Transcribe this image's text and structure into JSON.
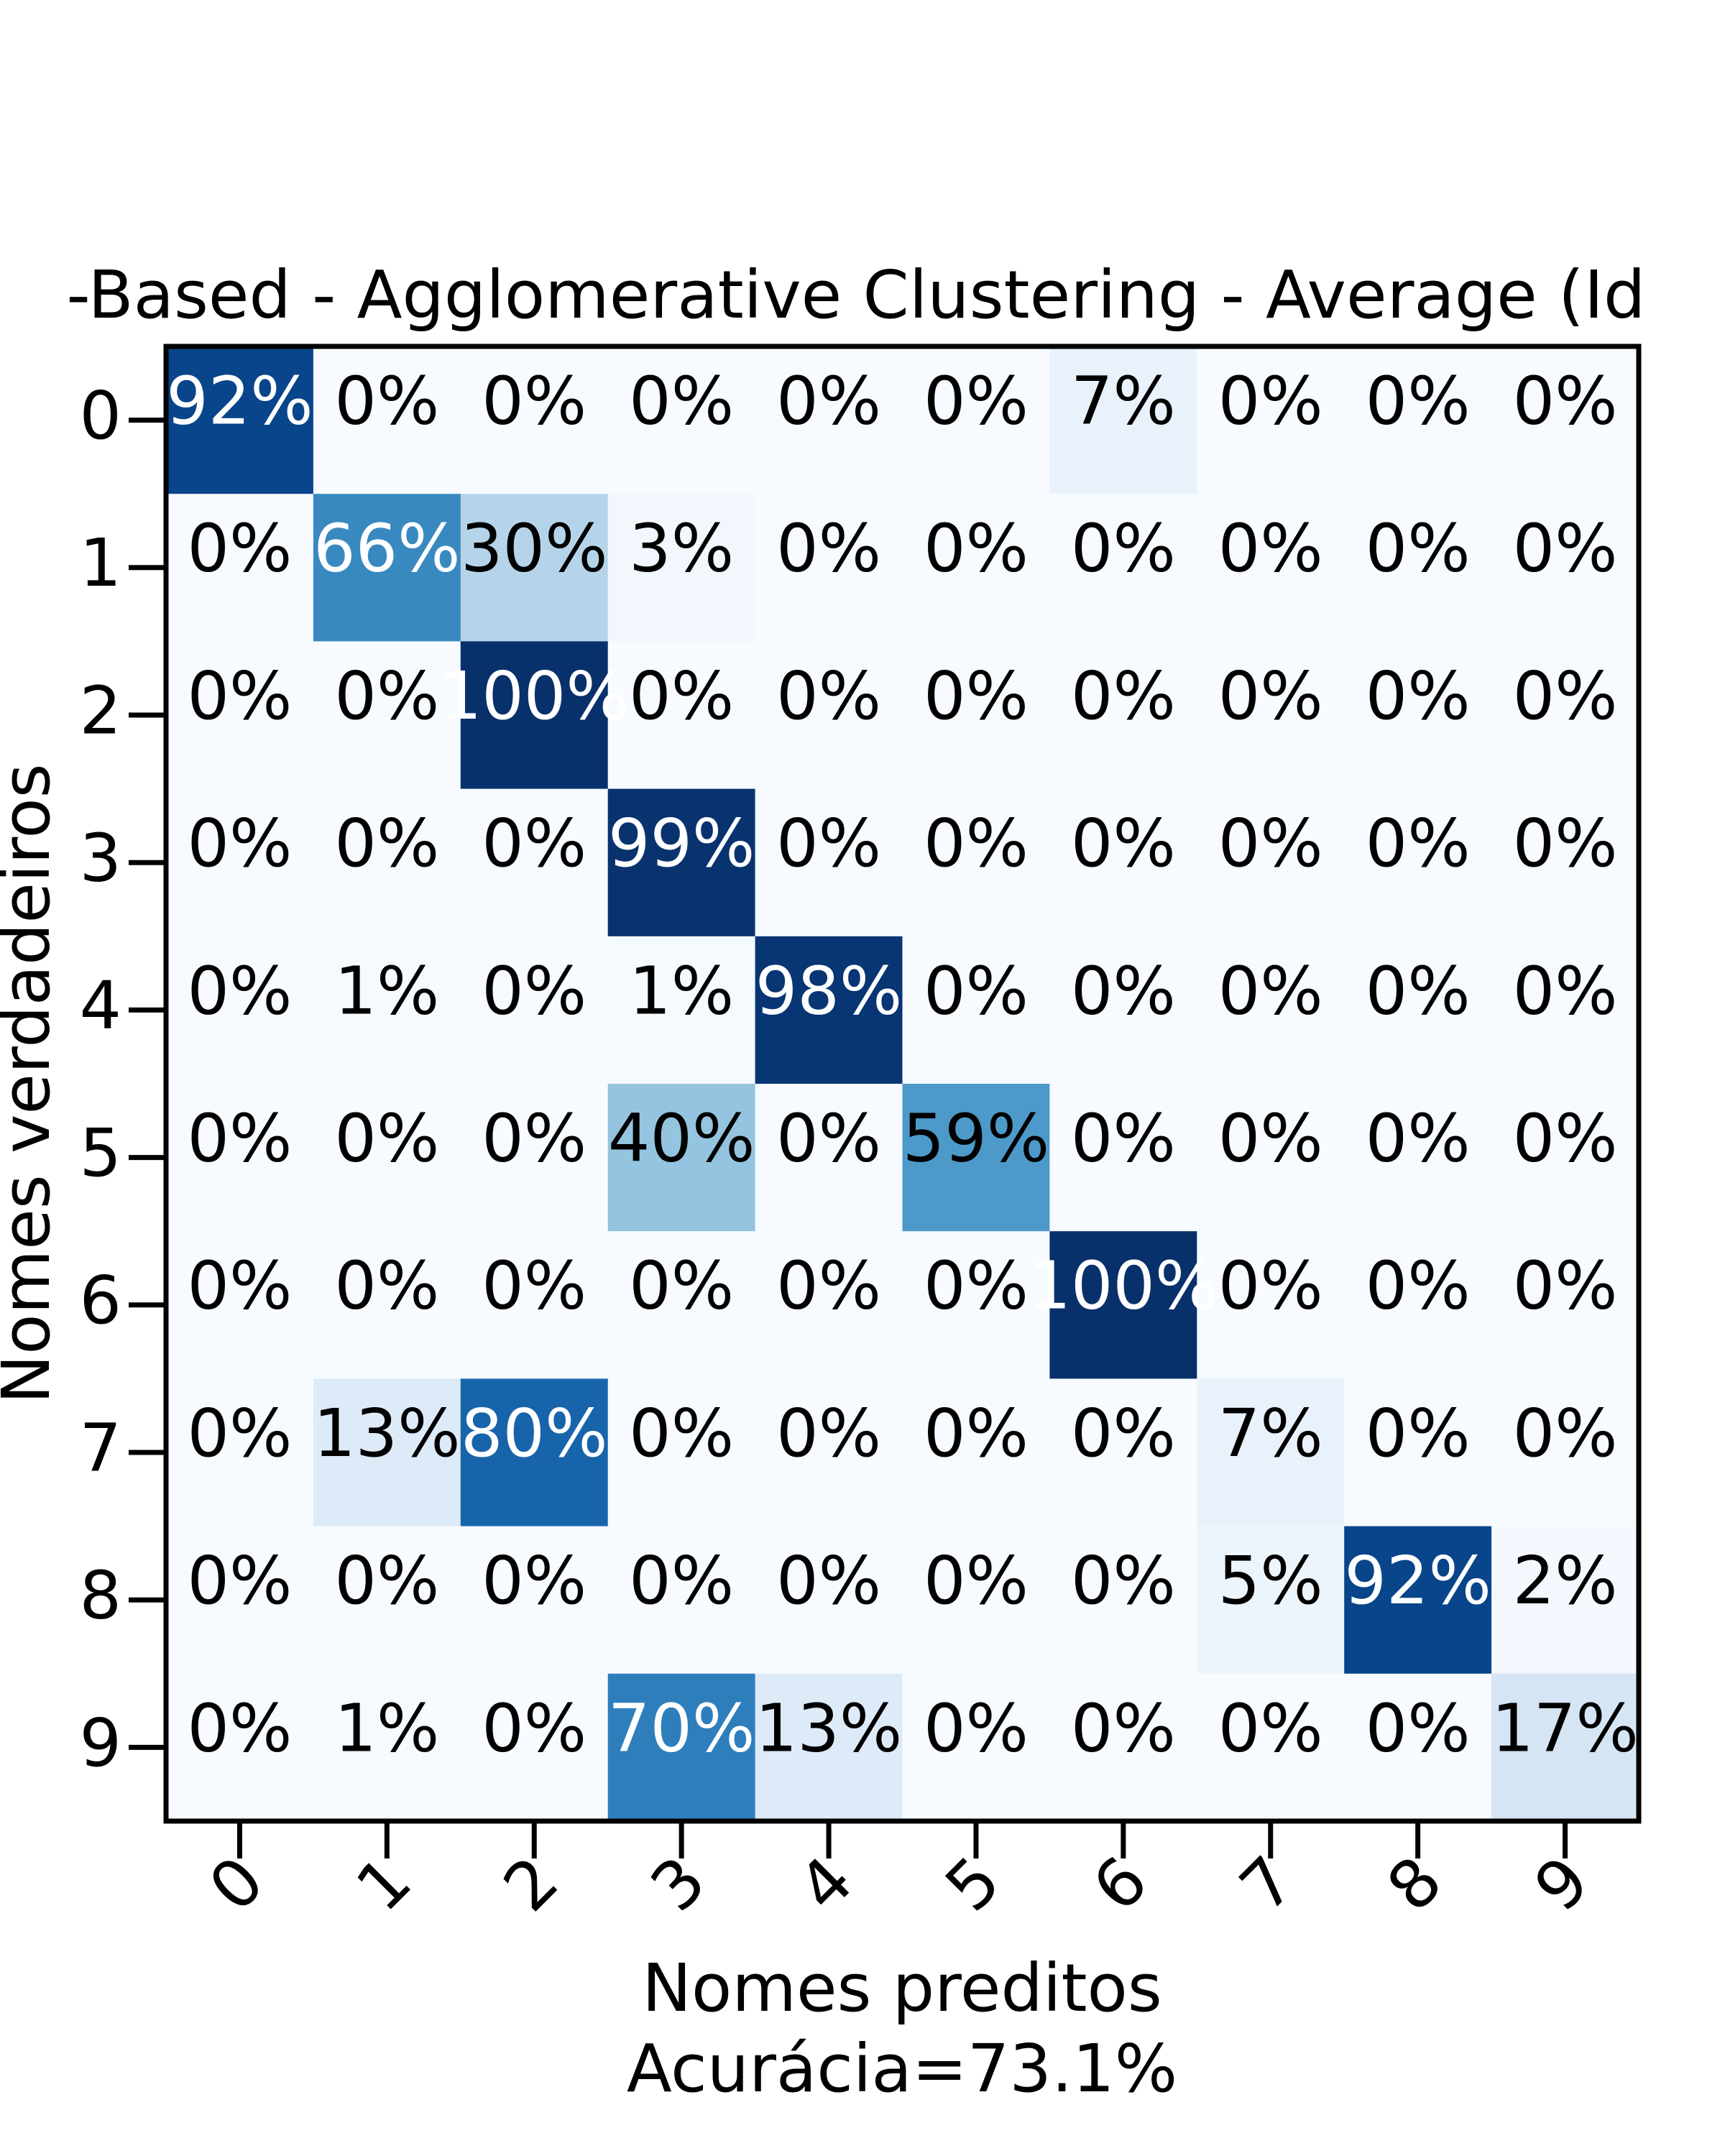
{
  "chart_data": {
    "type": "heatmap",
    "title": "-Based - Agglomerative Clustering - Average (Id",
    "xlabel": "Nomes preditos",
    "xlabel_note": "Acurácia=73.1%",
    "ylabel": "Nomes verdadeiros",
    "x_categories": [
      "0",
      "1",
      "2",
      "3",
      "4",
      "5",
      "6",
      "7",
      "8",
      "9"
    ],
    "y_categories": [
      "0",
      "1",
      "2",
      "3",
      "4",
      "5",
      "6",
      "7",
      "8",
      "9"
    ],
    "colormap": "Blues",
    "value_range": [
      0,
      100
    ],
    "unit": "%",
    "values": [
      [
        92,
        0,
        0,
        0,
        0,
        0,
        7,
        0,
        0,
        0
      ],
      [
        0,
        66,
        30,
        3,
        0,
        0,
        0,
        0,
        0,
        0
      ],
      [
        0,
        0,
        100,
        0,
        0,
        0,
        0,
        0,
        0,
        0
      ],
      [
        0,
        0,
        0,
        99,
        0,
        0,
        0,
        0,
        0,
        0
      ],
      [
        0,
        1,
        0,
        1,
        98,
        0,
        0,
        0,
        0,
        0
      ],
      [
        0,
        0,
        0,
        40,
        0,
        59,
        0,
        0,
        0,
        0
      ],
      [
        0,
        0,
        0,
        0,
        0,
        0,
        100,
        0,
        0,
        0
      ],
      [
        0,
        13,
        80,
        0,
        0,
        0,
        0,
        7,
        0,
        0
      ],
      [
        0,
        0,
        0,
        0,
        0,
        0,
        0,
        5,
        92,
        2
      ],
      [
        0,
        1,
        0,
        70,
        13,
        0,
        0,
        0,
        0,
        17
      ]
    ],
    "cell_labels": [
      [
        "92%",
        "0%",
        "0%",
        "0%",
        "0%",
        "0%",
        "7%",
        "0%",
        "0%",
        "0%"
      ],
      [
        "0%",
        "66%",
        "30%",
        "3%",
        "0%",
        "0%",
        "0%",
        "0%",
        "0%",
        "0%"
      ],
      [
        "0%",
        "0%",
        "100%",
        "0%",
        "0%",
        "0%",
        "0%",
        "0%",
        "0%",
        "0%"
      ],
      [
        "0%",
        "0%",
        "0%",
        "99%",
        "0%",
        "0%",
        "0%",
        "0%",
        "0%",
        "0%"
      ],
      [
        "0%",
        "1%",
        "0%",
        "1%",
        "98%",
        "0%",
        "0%",
        "0%",
        "0%",
        "0%"
      ],
      [
        "0%",
        "0%",
        "0%",
        "40%",
        "0%",
        "59%",
        "0%",
        "0%",
        "0%",
        "0%"
      ],
      [
        "0%",
        "0%",
        "0%",
        "0%",
        "0%",
        "0%",
        "100%",
        "0%",
        "0%",
        "0%"
      ],
      [
        "0%",
        "13%",
        "80%",
        "0%",
        "0%",
        "0%",
        "0%",
        "7%",
        "0%",
        "0%"
      ],
      [
        "0%",
        "0%",
        "0%",
        "0%",
        "0%",
        "0%",
        "0%",
        "5%",
        "92%",
        "2%"
      ],
      [
        "0%",
        "1%",
        "0%",
        "70%",
        "13%",
        "0%",
        "0%",
        "0%",
        "0%",
        "17%"
      ]
    ],
    "grid": false,
    "legend": "none",
    "x_tick_rotation_deg": 45
  }
}
